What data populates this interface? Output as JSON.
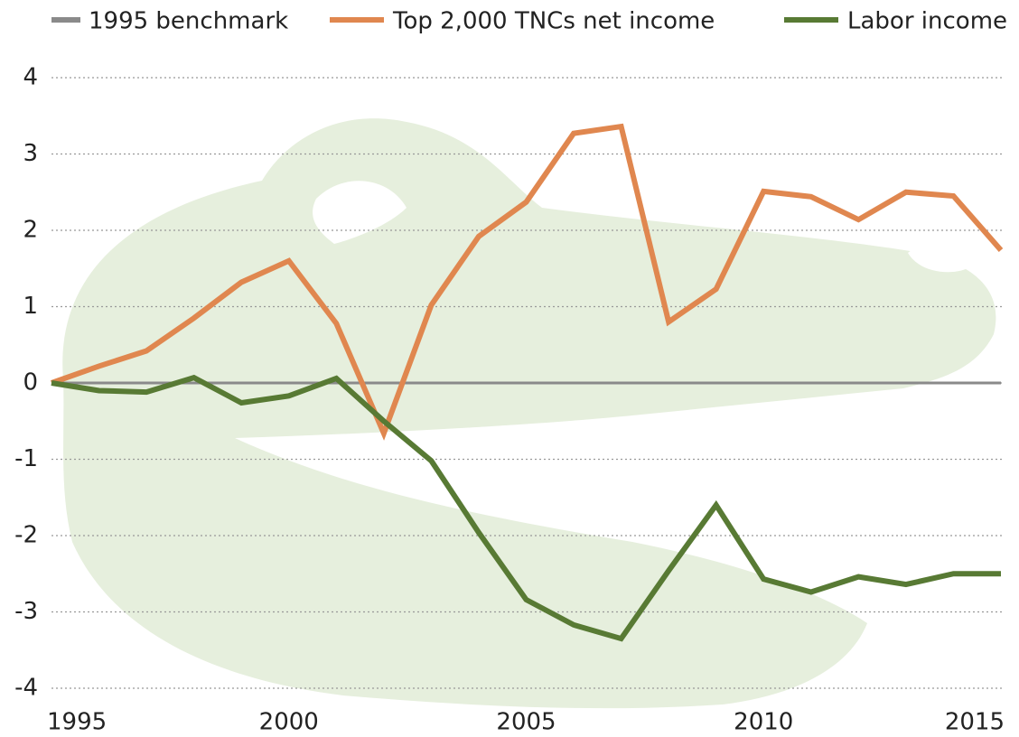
{
  "chart_data": {
    "type": "line",
    "x": [
      1995,
      1996,
      1997,
      1998,
      1999,
      2000,
      2001,
      2002,
      2003,
      2004,
      2005,
      2006,
      2007,
      2008,
      2009,
      2010,
      2011,
      2012,
      2013,
      2014,
      2015
    ],
    "series": [
      {
        "name": "1995 benchmark",
        "color": "#8a8a8a",
        "values": [
          0,
          0,
          0,
          0,
          0,
          0,
          0,
          0,
          0,
          0,
          0,
          0,
          0,
          0,
          0,
          0,
          0,
          0,
          0,
          0,
          0
        ]
      },
      {
        "name": "Top 2,000 TNCs net income",
        "color": "#e0874f",
        "values": [
          0,
          0.22,
          0.42,
          0.85,
          1.32,
          1.6,
          0.78,
          -0.66,
          1.02,
          1.92,
          2.37,
          3.27,
          3.36,
          0.8,
          1.23,
          2.51,
          2.44,
          2.14,
          2.5,
          2.45,
          1.74
        ]
      },
      {
        "name": "Labor income",
        "color": "#587a34",
        "values": [
          0,
          -0.1,
          -0.12,
          0.07,
          -0.26,
          -0.17,
          0.06,
          -0.5,
          -1.02,
          -1.96,
          -2.84,
          -3.17,
          -3.35,
          -2.46,
          -1.6,
          -2.57,
          -2.74,
          -2.54,
          -2.64,
          -2.5,
          -2.5
        ]
      }
    ],
    "xlim": [
      1995,
      2015
    ],
    "xticks": [
      1995,
      2000,
      2005,
      2010,
      2015
    ],
    "ylim": [
      -4,
      4
    ],
    "yticks": [
      -4,
      -3,
      -2,
      -1,
      0,
      1,
      2,
      3,
      4
    ],
    "grid": true
  }
}
